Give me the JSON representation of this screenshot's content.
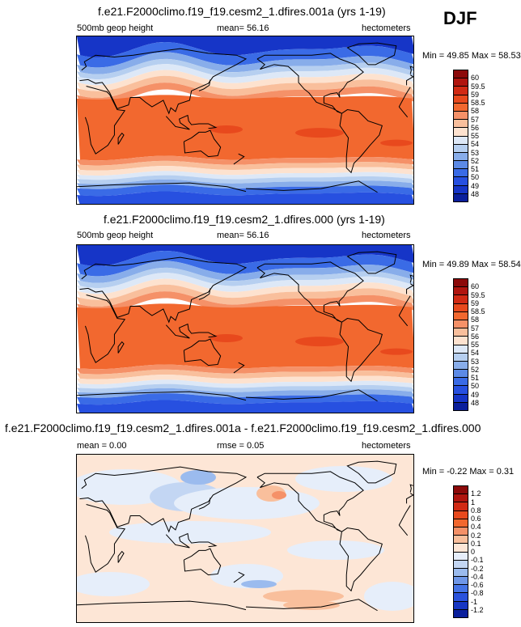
{
  "season": "DJF",
  "panels": [
    {
      "title": "f.e21.F2000climo.f19_f19.cesm2_1.dfires.001a (yrs 1-19)",
      "left_label": "500mb geop height",
      "center_label": "mean=  56.16",
      "right_label": "hectometers",
      "minmax": "Min = 49.85 Max = 58.53",
      "palette": "full",
      "colorbar_labels": [
        "60",
        "59.5",
        "59",
        "58.5",
        "58",
        "57",
        "56",
        "55",
        "54",
        "53",
        "52",
        "51",
        "50",
        "49",
        "48"
      ],
      "colorbar_colors": [
        "#8c0a0a",
        "#b0150f",
        "#d12a14",
        "#e8491d",
        "#f2682f",
        "#f59168",
        "#f9bf9c",
        "#fde2cf",
        "#dde8f7",
        "#b6cff0",
        "#88adea",
        "#5c8ae6",
        "#3a6be6",
        "#2750e0",
        "#1635c7",
        "#0a1f9c"
      ],
      "chart_data": {
        "type": "heatmap",
        "variable": "500mb geop height",
        "units": "hectometers",
        "season": "DJF",
        "mean": 56.16,
        "min": 49.85,
        "max": 58.53,
        "contour_levels": [
          48,
          49,
          50,
          51,
          52,
          53,
          54,
          55,
          56,
          57,
          58,
          58.5,
          59,
          59.5,
          60
        ]
      }
    },
    {
      "title": "f.e21.F2000climo.f19_f19.cesm2_1.dfires.000 (yrs 1-19)",
      "left_label": "500mb geop height",
      "center_label": "mean=  56.16",
      "right_label": "hectometers",
      "minmax": "Min = 49.89 Max = 58.54",
      "palette": "full",
      "colorbar_labels": [
        "60",
        "59.5",
        "59",
        "58.5",
        "58",
        "57",
        "56",
        "55",
        "54",
        "53",
        "52",
        "51",
        "50",
        "49",
        "48"
      ],
      "colorbar_colors": [
        "#8c0a0a",
        "#b0150f",
        "#d12a14",
        "#e8491d",
        "#f2682f",
        "#f59168",
        "#f9bf9c",
        "#fde2cf",
        "#dde8f7",
        "#b6cff0",
        "#88adea",
        "#5c8ae6",
        "#3a6be6",
        "#2750e0",
        "#1635c7",
        "#0a1f9c"
      ],
      "chart_data": {
        "type": "heatmap",
        "variable": "500mb geop height",
        "units": "hectometers",
        "season": "DJF",
        "mean": 56.16,
        "min": 49.89,
        "max": 58.54,
        "contour_levels": [
          48,
          49,
          50,
          51,
          52,
          53,
          54,
          55,
          56,
          57,
          58,
          58.5,
          59,
          59.5,
          60
        ]
      }
    },
    {
      "title": "f.e21.F2000climo.f19_f19.cesm2_1.dfires.001a - f.e21.F2000climo.f19_f19.cesm2_1.dfires.000",
      "left_label": "mean =  0.00",
      "center_label": "rmse =  0.05",
      "right_label": "hectometers",
      "minmax": "Min = -0.22 Max =  0.31",
      "palette": "diff",
      "colorbar_labels": [
        "1.2",
        "1",
        "0.8",
        "0.6",
        "0.4",
        "0.2",
        "0.1",
        "0",
        "-0.1",
        "-0.2",
        "-0.4",
        "-0.6",
        "-0.8",
        "-1",
        "-1.2"
      ],
      "colorbar_colors": [
        "#8c0a0a",
        "#b0150f",
        "#d12a14",
        "#e8491d",
        "#f2682f",
        "#f59168",
        "#f9bf9c",
        "#fde6d6",
        "#e6eefa",
        "#c3d6f3",
        "#9bbbee",
        "#6f97e8",
        "#4574e6",
        "#2a52dc",
        "#1636c3",
        "#0a1f9c"
      ],
      "chart_data": {
        "type": "heatmap",
        "variable": "500mb geop height difference",
        "units": "hectometers",
        "season": "DJF",
        "mean": 0.0,
        "rmse": 0.05,
        "min": -0.22,
        "max": 0.31,
        "contour_levels": [
          -1.2,
          -1,
          -0.8,
          -0.6,
          -0.4,
          -0.2,
          -0.1,
          0,
          0.1,
          0.2,
          0.4,
          0.6,
          0.8,
          1,
          1.2
        ]
      }
    }
  ]
}
